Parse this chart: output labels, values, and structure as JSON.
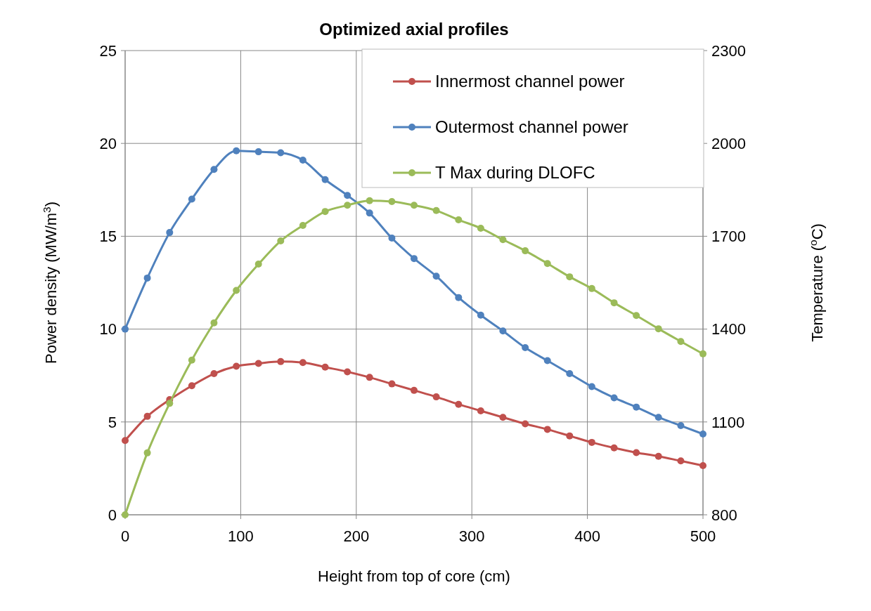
{
  "chart_data": {
    "type": "line",
    "title": "Optimized axial profiles",
    "xlabel": "Height from top of core (cm)",
    "ylabel": "Power density (MW/m$^{3}$)",
    "y2label": "Temperature ($^{o}$C)",
    "x": [
      0,
      19.2,
      38.5,
      57.7,
      76.9,
      96.2,
      115.4,
      134.6,
      153.8,
      173.1,
      192.3,
      211.5,
      230.8,
      250,
      269.2,
      288.5,
      307.7,
      326.9,
      346.2,
      365.4,
      384.6,
      403.8,
      423.1,
      442.3,
      461.5,
      480.8,
      500
    ],
    "series": [
      {
        "name": "Innermost channel power",
        "color": "#c0504d",
        "values": [
          4.0,
          5.3,
          6.2,
          6.95,
          7.6,
          8.0,
          8.15,
          8.25,
          8.2,
          7.95,
          7.7,
          7.4,
          7.05,
          6.7,
          6.35,
          5.95,
          5.6,
          5.25,
          4.9,
          4.6,
          4.25,
          3.9,
          3.6,
          3.35,
          3.15,
          2.9,
          2.65
        ]
      },
      {
        "name": "Outermost channel power",
        "color": "#4f81bd",
        "values": [
          10.0,
          12.75,
          15.2,
          17.0,
          18.6,
          19.6,
          19.55,
          19.5,
          19.1,
          18.05,
          17.2,
          16.25,
          14.9,
          13.8,
          12.85,
          11.7,
          10.75,
          9.9,
          9.0,
          8.3,
          7.6,
          6.9,
          6.3,
          5.8,
          5.25,
          4.8,
          4.35
        ]
      },
      {
        "name": "T Max during DLOFC",
        "color": "#9bbb59",
        "axis": "y2",
        "values": [
          800,
          1000,
          1160,
          1300,
          1420,
          1525,
          1610,
          1685,
          1735,
          1780,
          1800,
          1815,
          1812,
          1800,
          1783,
          1753,
          1726,
          1689,
          1653,
          1612,
          1569,
          1531,
          1485,
          1444,
          1401,
          1360,
          1320
        ]
      }
    ],
    "xlim": [
      0,
      500
    ],
    "xticks": [
      0,
      100,
      200,
      300,
      400,
      500
    ],
    "ylim": [
      0,
      25
    ],
    "yticks": [
      0,
      5,
      10,
      15,
      20,
      25
    ],
    "y2lim": [
      800,
      2300
    ],
    "y2ticks": [
      800,
      1100,
      1400,
      1700,
      2000,
      2300
    ],
    "grid": true,
    "legend": "top right",
    "marker": "circle",
    "line_style": "solid"
  }
}
